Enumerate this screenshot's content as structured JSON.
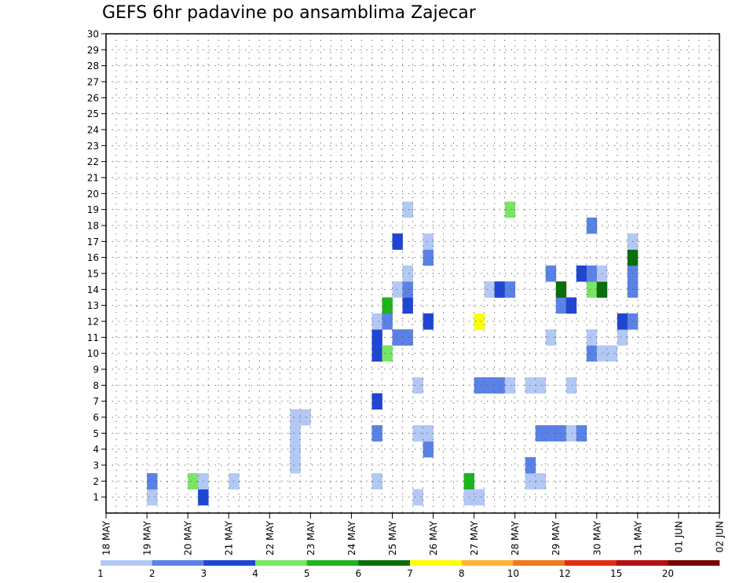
{
  "chart_data": {
    "type": "heatmap",
    "title": "GEFS 6hr padavine po ansamblima Zajecar",
    "x_tick_labels": [
      "18 MAY",
      "19 MAY",
      "20 MAY",
      "21 MAY",
      "22 MAY",
      "23 MAY",
      "24 MAY",
      "25 MAY",
      "26 MAY",
      "27 MAY",
      "28 MAY",
      "29 MAY",
      "30 MAY",
      "31 MAY",
      "01 JUN",
      "02 JUN"
    ],
    "y_tick_labels": [
      "1",
      "2",
      "3",
      "4",
      "5",
      "6",
      "7",
      "8",
      "9",
      "10",
      "11",
      "12",
      "13",
      "14",
      "15",
      "16",
      "17",
      "18",
      "19",
      "20",
      "21",
      "22",
      "23",
      "24",
      "25",
      "26",
      "27",
      "28",
      "29",
      "30"
    ],
    "x_range": [
      0,
      60
    ],
    "y_range": [
      0,
      30
    ],
    "x_unit": "6-hour steps from 18 MAY 00Z (4 steps per day)",
    "grid": true,
    "legend_position": "bottom",
    "legend": {
      "boundaries": [
        "1",
        "2",
        "3",
        "4",
        "5",
        "6",
        "7",
        "8",
        "10",
        "12",
        "15",
        "20"
      ],
      "colors": [
        "#b4c8f5",
        "#5a82e6",
        "#1e46d2",
        "#78e664",
        "#1eb41e",
        "#0a6e0a",
        "#ffff00",
        "#ffb432",
        "#f0781e",
        "#e12d14",
        "#b40f0f",
        "#780000"
      ]
    },
    "cells": [
      [
        4,
        1,
        1
      ],
      [
        4,
        2,
        2
      ],
      [
        9,
        1,
        3
      ],
      [
        8,
        2,
        4
      ],
      [
        9,
        2,
        1
      ],
      [
        12,
        2,
        1
      ],
      [
        18,
        3,
        1
      ],
      [
        18,
        4,
        1
      ],
      [
        18,
        5,
        1
      ],
      [
        18,
        6,
        1
      ],
      [
        19,
        6,
        1
      ],
      [
        26,
        2,
        1
      ],
      [
        26,
        5,
        2
      ],
      [
        26,
        7,
        3
      ],
      [
        26,
        10,
        3
      ],
      [
        26,
        11,
        3
      ],
      [
        26,
        12,
        1
      ],
      [
        27,
        10,
        4
      ],
      [
        27,
        12,
        2
      ],
      [
        27,
        13,
        5
      ],
      [
        28,
        11,
        2
      ],
      [
        28,
        14,
        1
      ],
      [
        28,
        17,
        3
      ],
      [
        29,
        11,
        2
      ],
      [
        29,
        13,
        3
      ],
      [
        29,
        14,
        2
      ],
      [
        29,
        15,
        1
      ],
      [
        29,
        19,
        1
      ],
      [
        30,
        1,
        1
      ],
      [
        30,
        5,
        1
      ],
      [
        30,
        8,
        1
      ],
      [
        31,
        4,
        2
      ],
      [
        31,
        5,
        1
      ],
      [
        31,
        12,
        3
      ],
      [
        31,
        16,
        2
      ],
      [
        31,
        17,
        1
      ],
      [
        35,
        1,
        1
      ],
      [
        35,
        2,
        5
      ],
      [
        36,
        1,
        1
      ],
      [
        36,
        8,
        2
      ],
      [
        36,
        12,
        7
      ],
      [
        37,
        8,
        2
      ],
      [
        37,
        14,
        1
      ],
      [
        38,
        8,
        2
      ],
      [
        38,
        14,
        3
      ],
      [
        39,
        8,
        1
      ],
      [
        39,
        14,
        2
      ],
      [
        39,
        19,
        4
      ],
      [
        41,
        2,
        1
      ],
      [
        41,
        3,
        2
      ],
      [
        41,
        8,
        1
      ],
      [
        42,
        2,
        1
      ],
      [
        42,
        5,
        2
      ],
      [
        42,
        8,
        1
      ],
      [
        43,
        5,
        2
      ],
      [
        43,
        11,
        1
      ],
      [
        43,
        15,
        2
      ],
      [
        44,
        5,
        2
      ],
      [
        44,
        13,
        2
      ],
      [
        44,
        14,
        6
      ],
      [
        45,
        5,
        1
      ],
      [
        45,
        8,
        1
      ],
      [
        45,
        13,
        3
      ],
      [
        46,
        5,
        2
      ],
      [
        46,
        15,
        3
      ],
      [
        47,
        10,
        2
      ],
      [
        47,
        11,
        1
      ],
      [
        47,
        14,
        4
      ],
      [
        47,
        15,
        2
      ],
      [
        47,
        18,
        2
      ],
      [
        48,
        10,
        1
      ],
      [
        48,
        14,
        6
      ],
      [
        48,
        15,
        1
      ],
      [
        49,
        10,
        1
      ],
      [
        50,
        11,
        1
      ],
      [
        50,
        12,
        3
      ],
      [
        51,
        12,
        2
      ],
      [
        51,
        14,
        2
      ],
      [
        51,
        15,
        2
      ],
      [
        51,
        16,
        6
      ],
      [
        51,
        17,
        1
      ]
    ],
    "xlabel": "",
    "ylabel": ""
  }
}
